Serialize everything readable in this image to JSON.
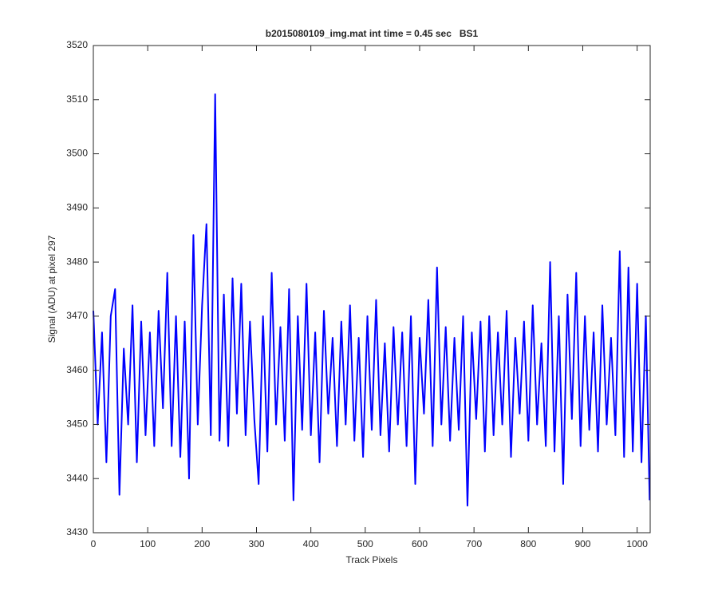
{
  "chart_data": {
    "type": "line",
    "title": "b2015080109_img.mat int time = 0.45 sec   BS1",
    "xlabel": "Track Pixels",
    "ylabel": "Signal (ADU) at pixel 297",
    "color": "#0000ff",
    "x": [
      0,
      8,
      16,
      24,
      32,
      40,
      48,
      56,
      64,
      72,
      80,
      88,
      96,
      104,
      112,
      120,
      128,
      136,
      144,
      152,
      160,
      168,
      176,
      184,
      192,
      200,
      208,
      216,
      224,
      232,
      240,
      248,
      256,
      264,
      272,
      280,
      288,
      296,
      304,
      312,
      320,
      328,
      336,
      344,
      352,
      360,
      368,
      376,
      384,
      392,
      400,
      408,
      416,
      424,
      432,
      440,
      448,
      456,
      464,
      472,
      480,
      488,
      496,
      504,
      512,
      520,
      528,
      536,
      544,
      552,
      560,
      568,
      576,
      584,
      592,
      600,
      608,
      616,
      624,
      632,
      640,
      648,
      656,
      664,
      672,
      680,
      688,
      696,
      704,
      712,
      720,
      728,
      736,
      744,
      752,
      760,
      768,
      776,
      784,
      792,
      800,
      808,
      816,
      824,
      832,
      840,
      848,
      856,
      864,
      872,
      880,
      888,
      896,
      904,
      912,
      920,
      928,
      936,
      944,
      952,
      960,
      968,
      976,
      984,
      992,
      1000,
      1008,
      1016,
      1023
    ],
    "values": [
      3471,
      3450,
      3467,
      3443,
      3470,
      3475,
      3437,
      3464,
      3450,
      3472,
      3443,
      3469,
      3448,
      3467,
      3446,
      3471,
      3453,
      3478,
      3446,
      3470,
      3444,
      3469,
      3440,
      3485,
      3450,
      3472,
      3487,
      3448,
      3511,
      3447,
      3474,
      3446,
      3477,
      3452,
      3476,
      3448,
      3469,
      3451,
      3439,
      3470,
      3445,
      3478,
      3450,
      3468,
      3447,
      3475,
      3436,
      3470,
      3449,
      3476,
      3448,
      3467,
      3443,
      3471,
      3452,
      3466,
      3446,
      3469,
      3450,
      3472,
      3447,
      3466,
      3444,
      3470,
      3449,
      3473,
      3448,
      3465,
      3445,
      3468,
      3450,
      3467,
      3446,
      3470,
      3439,
      3466,
      3452,
      3473,
      3446,
      3479,
      3450,
      3468,
      3447,
      3466,
      3449,
      3470,
      3435,
      3467,
      3451,
      3469,
      3445,
      3470,
      3448,
      3467,
      3450,
      3471,
      3444,
      3466,
      3452,
      3469,
      3447,
      3472,
      3450,
      3465,
      3446,
      3480,
      3445,
      3470,
      3439,
      3474,
      3451,
      3478,
      3446,
      3470,
      3449,
      3467,
      3445,
      3472,
      3450,
      3466,
      3448,
      3482,
      3444,
      3479,
      3445,
      3476,
      3443,
      3470,
      3436
    ],
    "xlim": [
      0,
      1024
    ],
    "ylim": [
      3430,
      3520
    ],
    "xticks": [
      0,
      100,
      200,
      300,
      400,
      500,
      600,
      700,
      800,
      900,
      1000
    ],
    "yticks": [
      3430,
      3440,
      3450,
      3460,
      3470,
      3480,
      3490,
      3500,
      3510,
      3520
    ]
  }
}
